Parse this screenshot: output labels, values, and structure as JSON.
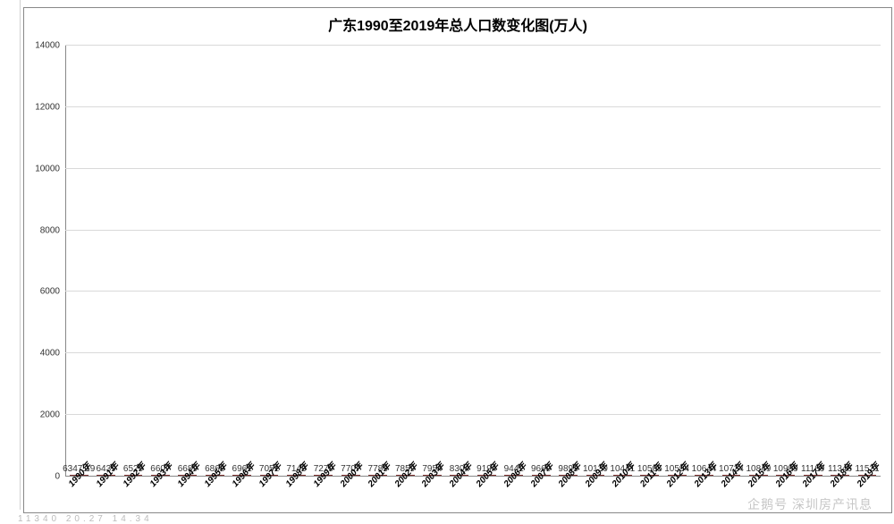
{
  "chart": {
    "type": "bar",
    "title": "广东1990至2019年总人口数变化图(万人)",
    "title_fontsize": 16,
    "title_weight": "bold",
    "background_color": "#ffffff",
    "plot_border_color": "#888888",
    "grid_color": "#d9d9d9",
    "axis_color": "#888888",
    "bar_color": "#b14340",
    "bar_border_color": "#7a2e2c",
    "bar_width_ratio": 0.62,
    "ylim": [
      0,
      14000
    ],
    "ytick_step": 2000,
    "yticks": [
      0,
      2000,
      4000,
      6000,
      8000,
      10000,
      12000,
      14000
    ],
    "label_fontsize": 10,
    "xlabel_rotation_deg": -48,
    "categories": [
      "1990年",
      "1991年",
      "1992年",
      "1993年",
      "1994年",
      "1995年",
      "1996年",
      "1997年",
      "1998年",
      "1999年",
      "2000年",
      "2001年",
      "2002年",
      "2003年",
      "2004年",
      "2005年",
      "2006年",
      "2007年",
      "2008年",
      "2009年",
      "2010年",
      "2011年",
      "2012年",
      "2013年",
      "2014年",
      "2015年",
      "2016年",
      "2017年",
      "2018年",
      "2019年"
    ],
    "values": [
      6347.19,
      6439,
      6525,
      6607,
      6689,
      6868,
      6961,
      7051,
      7143,
      7270,
      7707,
      7783,
      7859,
      7954,
      8304,
      9194,
      9442,
      9660,
      9893,
      10130,
      10441,
      10505,
      10594,
      10644,
      10724,
      10849,
      10999,
      11169,
      11346,
      11521
    ],
    "value_labels": [
      "6347.19",
      "6439",
      "6525",
      "6607",
      "6689",
      "6868",
      "6961",
      "7051",
      "7143",
      "7270",
      "7707",
      "7783",
      "7859",
      "7954",
      "8304",
      "9194",
      "9442",
      "9660",
      "9893",
      "10130",
      "10441",
      "10505",
      "10594",
      "10644",
      "10724",
      "10849",
      "10999",
      "11169",
      "11346",
      "11521"
    ]
  },
  "watermark": "企鹅号 深圳房产讯息",
  "status_left": "11340    20.27    14.34"
}
